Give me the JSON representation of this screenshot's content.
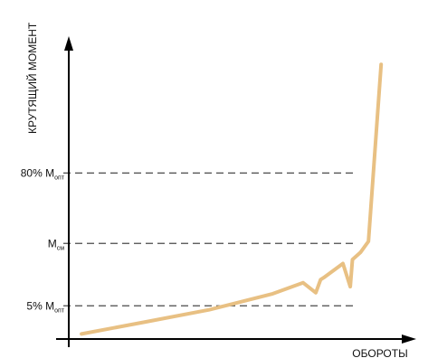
{
  "chart_data": {
    "type": "line",
    "title": "",
    "ylabel": "КРУТЯЩИЙ МОМЕНТ",
    "xlabel": "ОБОРОТЫ",
    "grid": false,
    "reference_lines": [
      {
        "main": "80% M",
        "sub": "опт",
        "value": 80
      },
      {
        "main": "M",
        "sub": "см",
        "value": 45
      },
      {
        "main": "5% M",
        "sub": "опт",
        "value": 14
      }
    ],
    "series": [
      {
        "color": "#e8c083",
        "x": [
          0,
          20,
          40,
          60,
          69.5,
          73.5,
          75,
          76,
          82,
          84.3,
          85,
          87.5,
          90,
          94
        ],
        "y": [
          0,
          6,
          12,
          20,
          25.5,
          20.5,
          27,
          28,
          35,
          23.5,
          37,
          40.5,
          46,
          134
        ]
      }
    ],
    "xlim": [
      -4,
      105
    ],
    "ylim": [
      -2.5,
      148
    ]
  }
}
